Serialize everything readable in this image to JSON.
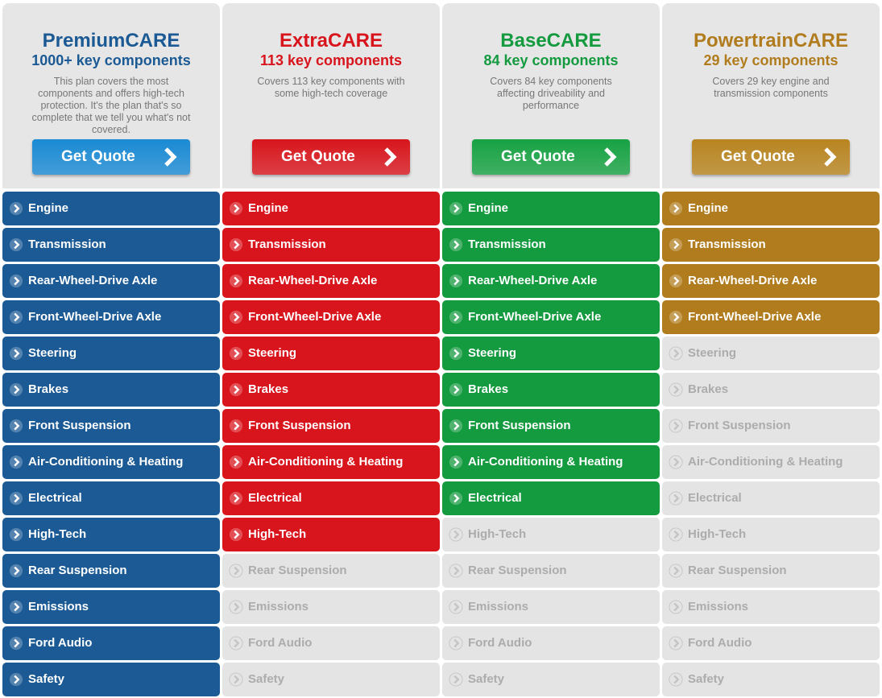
{
  "components": [
    "Engine",
    "Transmission",
    "Rear-Wheel-Drive Axle",
    "Front-Wheel-Drive Axle",
    "Steering",
    "Brakes",
    "Front Suspension",
    "Air-Conditioning & Heating",
    "Electrical",
    "High-Tech",
    "Rear Suspension",
    "Emissions",
    "Ford Audio",
    "Safety"
  ],
  "plans": [
    {
      "name": "PremiumCARE",
      "subtitle": "1000+ key components",
      "description": "This plan covers the most components and offers high-tech protection. It's the plan that's so complete that we tell you what's not covered.",
      "button": "Get Quote",
      "color": "#1b5a94",
      "title_color": "#1b5a94",
      "button_color": "#1a8ad4",
      "covered": [
        true,
        true,
        true,
        true,
        true,
        true,
        true,
        true,
        true,
        true,
        true,
        true,
        true,
        true
      ]
    },
    {
      "name": "ExtraCARE",
      "subtitle": "113 key components",
      "description": "Covers 113 key components with some high-tech coverage",
      "button": "Get Quote",
      "color": "#d8151c",
      "title_color": "#d8151c",
      "button_color": "#d8151c",
      "covered": [
        true,
        true,
        true,
        true,
        true,
        true,
        true,
        true,
        true,
        true,
        false,
        false,
        false,
        false
      ]
    },
    {
      "name": "BaseCARE",
      "subtitle": "84 key components",
      "description": "Covers 84 key components affecting driveability and performance",
      "button": "Get Quote",
      "color": "#149a3f",
      "title_color": "#149a3f",
      "button_color": "#17a243",
      "covered": [
        true,
        true,
        true,
        true,
        true,
        true,
        true,
        true,
        true,
        false,
        false,
        false,
        false,
        false
      ]
    },
    {
      "name": "PowertrainCARE",
      "subtitle": "29 key components",
      "description": "Covers 29 key engine and transmission components",
      "button": "Get Quote",
      "color": "#b07c1e",
      "title_color": "#b07c1e",
      "button_color": "#b8841f",
      "covered": [
        true,
        true,
        true,
        true,
        false,
        false,
        false,
        false,
        false,
        false,
        false,
        false,
        false,
        false
      ]
    }
  ]
}
